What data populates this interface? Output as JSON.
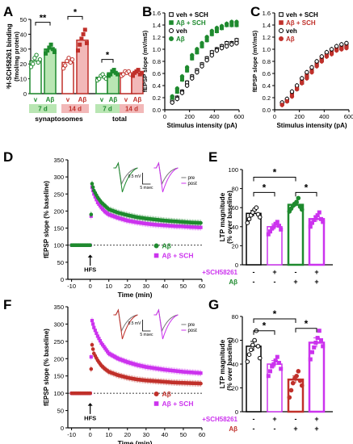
{
  "colors": {
    "green": "#1e8a2e",
    "green_light": "#b9e6b3",
    "red": "#c0302a",
    "red_light": "#f2b8b8",
    "magenta": "#cc33ee",
    "magenta_light": "#f0b8f8",
    "black": "#000000",
    "gray": "#777777"
  },
  "chart_data": [
    {
      "panel": "A",
      "type": "bar",
      "ylabel": "³H-SCH58261 binding",
      "ylabel2": "(fmol/mg protein)",
      "ylim": [
        0,
        50
      ],
      "yticks": [
        0,
        10,
        20,
        30,
        40,
        50
      ],
      "groups": [
        {
          "name": "synaptosomes",
          "bars": [
            {
              "label": "v",
              "sub": "7 d",
              "value": 22
            },
            {
              "label": "Aβ",
              "sub": "7 d",
              "value": 30
            },
            {
              "label": "v",
              "sub": "14 d",
              "value": 21
            },
            {
              "label": "Aβ",
              "sub": "14 d",
              "value": 36
            }
          ]
        },
        {
          "name": "total",
          "bars": [
            {
              "label": "v",
              "sub": "7 d",
              "value": 11
            },
            {
              "label": "Aβ",
              "sub": "7 d",
              "value": 14
            },
            {
              "label": "v",
              "sub": "14 d",
              "value": 14
            },
            {
              "label": "Aβ",
              "sub": "14 d",
              "value": 14
            }
          ]
        }
      ],
      "points": [
        [
          18,
          20,
          24,
          26,
          21,
          23
        ],
        [
          27,
          29,
          31,
          33,
          30,
          28
        ],
        [
          17,
          19,
          22,
          24,
          21,
          23
        ],
        [
          29,
          33,
          37,
          40,
          43,
          34
        ],
        [
          9,
          10,
          12,
          13,
          11,
          10
        ],
        [
          12,
          13,
          15,
          16,
          14,
          13
        ],
        [
          12,
          13,
          15,
          14,
          15,
          13
        ],
        [
          12,
          14,
          15,
          16,
          13,
          14
        ]
      ],
      "significance": [
        "**",
        "*",
        "*"
      ]
    },
    {
      "panel": "B",
      "type": "scatter",
      "xlabel": "Stimulus intensity (pA)",
      "ylabel": "fEPSP slope (mV/mS)",
      "xlim": [
        0,
        600
      ],
      "ylim": [
        0,
        1.6
      ],
      "xticks": [
        0,
        200,
        400,
        600
      ],
      "yticks": [
        0,
        0.2,
        0.4,
        0.6,
        0.8,
        1.0,
        1.2,
        1.4,
        1.6
      ],
      "series": [
        {
          "name": "veh + SCH",
          "x": [
            60,
            100,
            140,
            180,
            220,
            260,
            300,
            340,
            380,
            420,
            460,
            500,
            540,
            580
          ],
          "y": [
            0.15,
            0.2,
            0.3,
            0.45,
            0.55,
            0.65,
            0.75,
            0.85,
            0.95,
            1.0,
            1.05,
            1.1,
            1.1,
            1.15
          ]
        },
        {
          "name": "Aβ + SCH",
          "x": [
            60,
            100,
            140,
            180,
            220,
            260,
            300,
            340,
            380,
            420,
            460,
            500,
            540,
            580
          ],
          "y": [
            0.2,
            0.3,
            0.5,
            0.65,
            0.85,
            0.95,
            1.05,
            1.15,
            1.25,
            1.3,
            1.35,
            1.4,
            1.4,
            1.4
          ]
        },
        {
          "name": "veh",
          "x": [
            60,
            100,
            140,
            180,
            220,
            260,
            300,
            340,
            380,
            420,
            460,
            500,
            540,
            580
          ],
          "y": [
            0.12,
            0.18,
            0.28,
            0.4,
            0.52,
            0.62,
            0.72,
            0.82,
            0.9,
            0.98,
            1.02,
            1.05,
            1.08,
            1.1
          ]
        },
        {
          "name": "Aβ",
          "x": [
            60,
            100,
            140,
            180,
            220,
            260,
            300,
            340,
            380,
            420,
            460,
            500,
            540,
            580
          ],
          "y": [
            0.22,
            0.35,
            0.55,
            0.7,
            0.9,
            1.0,
            1.1,
            1.2,
            1.3,
            1.35,
            1.38,
            1.42,
            1.45,
            1.45
          ]
        }
      ]
    },
    {
      "panel": "C",
      "type": "scatter",
      "xlabel": "Stimulus intensity (pA)",
      "ylabel": "fEPSP slope (mV/mS)",
      "xlim": [
        0,
        600
      ],
      "ylim": [
        0,
        1.6
      ],
      "xticks": [
        0,
        200,
        400,
        600
      ],
      "yticks": [
        0,
        0.2,
        0.4,
        0.6,
        0.8,
        1.0,
        1.2,
        1.4,
        1.6
      ],
      "series": [
        {
          "name": "veh + SCH",
          "x": [
            60,
            100,
            140,
            180,
            220,
            260,
            300,
            340,
            380,
            420,
            460,
            500,
            540,
            580
          ],
          "y": [
            0.1,
            0.15,
            0.25,
            0.35,
            0.45,
            0.55,
            0.65,
            0.75,
            0.82,
            0.9,
            0.95,
            1.0,
            1.02,
            1.05
          ]
        },
        {
          "name": "Aβ + SCH",
          "x": [
            60,
            100,
            140,
            180,
            220,
            260,
            300,
            340,
            380,
            420,
            460,
            500,
            540,
            580
          ],
          "y": [
            0.1,
            0.16,
            0.26,
            0.38,
            0.48,
            0.58,
            0.68,
            0.78,
            0.85,
            0.92,
            0.98,
            1.02,
            1.05,
            1.08
          ]
        },
        {
          "name": "veh",
          "x": [
            60,
            100,
            140,
            180,
            220,
            260,
            300,
            340,
            380,
            420,
            460,
            500,
            540,
            580
          ],
          "y": [
            0.12,
            0.18,
            0.3,
            0.4,
            0.52,
            0.62,
            0.7,
            0.8,
            0.88,
            0.95,
            1.0,
            1.05,
            1.08,
            1.1
          ]
        },
        {
          "name": "Aβ",
          "x": [
            60,
            100,
            140,
            180,
            220,
            260,
            300,
            340,
            380,
            420,
            460,
            500,
            540,
            580
          ],
          "y": [
            0.08,
            0.14,
            0.22,
            0.34,
            0.44,
            0.52,
            0.62,
            0.72,
            0.8,
            0.88,
            0.92,
            0.98,
            1.0,
            1.02
          ]
        }
      ]
    },
    {
      "panel": "D",
      "type": "line",
      "xlabel": "Time (min)",
      "ylabel": "fEPSP slope (% baseline)",
      "xlim": [
        -12,
        60
      ],
      "ylim": [
        0,
        350
      ],
      "xticks": [
        -10,
        0,
        10,
        20,
        30,
        40,
        50,
        60
      ],
      "yticks": [
        0,
        50,
        100,
        150,
        200,
        250,
        300,
        350
      ],
      "annotation": "HFS",
      "series": [
        {
          "name": "Aβ",
          "x": [
            -10,
            -8,
            -6,
            -4,
            -2,
            0,
            1,
            2,
            4,
            6,
            8,
            10,
            15,
            20,
            25,
            30,
            35,
            40,
            45,
            50,
            55,
            60
          ],
          "y": [
            100,
            100,
            100,
            100,
            100,
            100,
            280,
            260,
            240,
            225,
            215,
            205,
            195,
            188,
            182,
            178,
            175,
            172,
            170,
            168,
            166,
            165
          ]
        },
        {
          "name": "Aβ + SCH",
          "x": [
            -10,
            -8,
            -6,
            -4,
            -2,
            0,
            1,
            2,
            4,
            6,
            8,
            10,
            15,
            20,
            25,
            30,
            35,
            40,
            45,
            50,
            55,
            60
          ],
          "y": [
            100,
            100,
            100,
            100,
            100,
            100,
            270,
            250,
            225,
            210,
            198,
            190,
            180,
            172,
            167,
            163,
            160,
            158,
            156,
            155,
            153,
            152
          ]
        }
      ],
      "inset": {
        "labels": [
          "pre",
          "post"
        ],
        "scalebar": [
          "0.5 mV",
          "5 msec"
        ]
      }
    },
    {
      "panel": "E",
      "type": "bar",
      "ylabel": "LTP magnitude",
      "ylabel2": "(% over baseline)",
      "ylim": [
        0,
        100
      ],
      "yticks": [
        0,
        20,
        40,
        60,
        80,
        100
      ],
      "row_labels": [
        "+SCH58261",
        "Aβ"
      ],
      "categories": [
        {
          "sch": "-",
          "ab": "-",
          "value": 54,
          "err": 3
        },
        {
          "sch": "+",
          "ab": "-",
          "value": 40,
          "err": 3
        },
        {
          "sch": "-",
          "ab": "+",
          "value": 63,
          "err": 2
        },
        {
          "sch": "+",
          "ab": "+",
          "value": 48,
          "err": 3
        }
      ],
      "points": [
        [
          44,
          48,
          52,
          55,
          58,
          60,
          53,
          50
        ],
        [
          32,
          35,
          38,
          40,
          43,
          45,
          41,
          37
        ],
        [
          56,
          59,
          62,
          64,
          66,
          70,
          61,
          58
        ],
        [
          40,
          44,
          47,
          50,
          52,
          55,
          48,
          45
        ]
      ],
      "significance": [
        "*",
        "*",
        "*"
      ]
    },
    {
      "panel": "F",
      "type": "line",
      "xlabel": "Time (min)",
      "ylabel": "fEPSP slope (% baseline)",
      "xlim": [
        -12,
        60
      ],
      "ylim": [
        0,
        350
      ],
      "xticks": [
        -10,
        0,
        10,
        20,
        30,
        40,
        50,
        60
      ],
      "yticks": [
        0,
        50,
        100,
        150,
        200,
        250,
        300,
        350
      ],
      "annotation": "HFS",
      "series": [
        {
          "name": "Aβ",
          "x": [
            -10,
            -8,
            -6,
            -4,
            -2,
            0,
            1,
            2,
            4,
            6,
            8,
            10,
            15,
            20,
            25,
            30,
            35,
            40,
            45,
            50,
            55,
            60
          ],
          "y": [
            100,
            100,
            100,
            100,
            100,
            100,
            240,
            215,
            195,
            180,
            170,
            162,
            152,
            145,
            140,
            137,
            135,
            133,
            131,
            130,
            129,
            128
          ]
        },
        {
          "name": "Aβ + SCH",
          "x": [
            -10,
            -8,
            -6,
            -4,
            -2,
            0,
            1,
            2,
            4,
            6,
            8,
            10,
            15,
            20,
            25,
            30,
            35,
            40,
            45,
            50,
            55,
            60
          ],
          "y": [
            100,
            100,
            100,
            100,
            100,
            100,
            310,
            290,
            265,
            245,
            230,
            215,
            200,
            190,
            182,
            176,
            172,
            168,
            165,
            162,
            160,
            158
          ]
        }
      ],
      "inset": {
        "labels": [
          "pre",
          "post"
        ],
        "scalebar": [
          "0.5 mV",
          "5 msec"
        ]
      }
    },
    {
      "panel": "G",
      "type": "bar",
      "ylabel": "LTP magnitude",
      "ylabel2": "(% over baseline)",
      "ylim": [
        0,
        80
      ],
      "yticks": [
        0,
        20,
        40,
        60,
        80
      ],
      "row_labels": [
        "+SCH58261",
        "Aβ"
      ],
      "categories": [
        {
          "sch": "-",
          "ab": "-",
          "value": 55,
          "err": 4
        },
        {
          "sch": "+",
          "ab": "-",
          "value": 40,
          "err": 3
        },
        {
          "sch": "-",
          "ab": "+",
          "value": 27,
          "err": 3
        },
        {
          "sch": "+",
          "ab": "+",
          "value": 58,
          "err": 4
        }
      ],
      "points": [
        [
          42,
          48,
          52,
          56,
          60,
          68,
          55,
          45
        ],
        [
          30,
          34,
          38,
          40,
          43,
          46,
          41,
          36
        ],
        [
          12,
          18,
          24,
          28,
          30,
          34,
          26,
          22
        ],
        [
          44,
          50,
          54,
          58,
          62,
          68,
          60,
          55
        ]
      ],
      "significance": [
        "*",
        "*",
        "*"
      ]
    }
  ]
}
